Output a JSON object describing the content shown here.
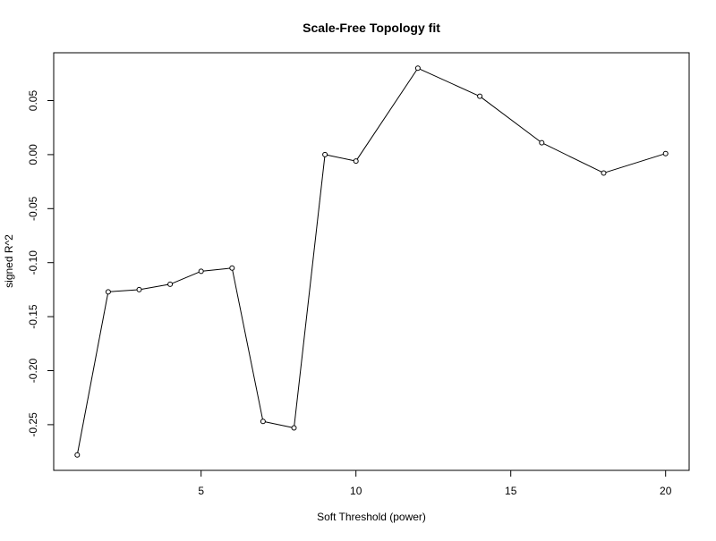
{
  "chart_data": {
    "type": "line",
    "title": "Scale-Free Topology fit",
    "xlabel": "Soft Threshold (power)",
    "ylabel": "signed R^2",
    "x": [
      1,
      2,
      3,
      4,
      5,
      6,
      7,
      8,
      9,
      10,
      12,
      14,
      16,
      18,
      20
    ],
    "series": [
      {
        "values": [
          -0.278,
          -0.127,
          -0.125,
          -0.12,
          -0.108,
          -0.105,
          -0.247,
          -0.253,
          0.0,
          -0.006,
          0.08,
          0.054,
          0.011,
          -0.017,
          0.001
        ]
      }
    ],
    "xlim": [
      0.24,
      20.76
    ],
    "ylim": [
      -0.2923,
      0.0943
    ],
    "x_ticks": [
      5,
      10,
      15,
      20
    ],
    "x_tick_labels": [
      "5",
      "10",
      "15",
      "20"
    ],
    "y_ticks": [
      -0.25,
      -0.2,
      -0.15,
      -0.1,
      -0.05,
      0.0,
      0.05
    ],
    "y_tick_labels": [
      "-0.25",
      "-0.20",
      "-0.15",
      "-0.10",
      "-0.05",
      "0.00",
      "0.05"
    ],
    "grid": false,
    "marker": "open-circle",
    "line_color": "#000000",
    "marker_fill": "#ffffff"
  }
}
